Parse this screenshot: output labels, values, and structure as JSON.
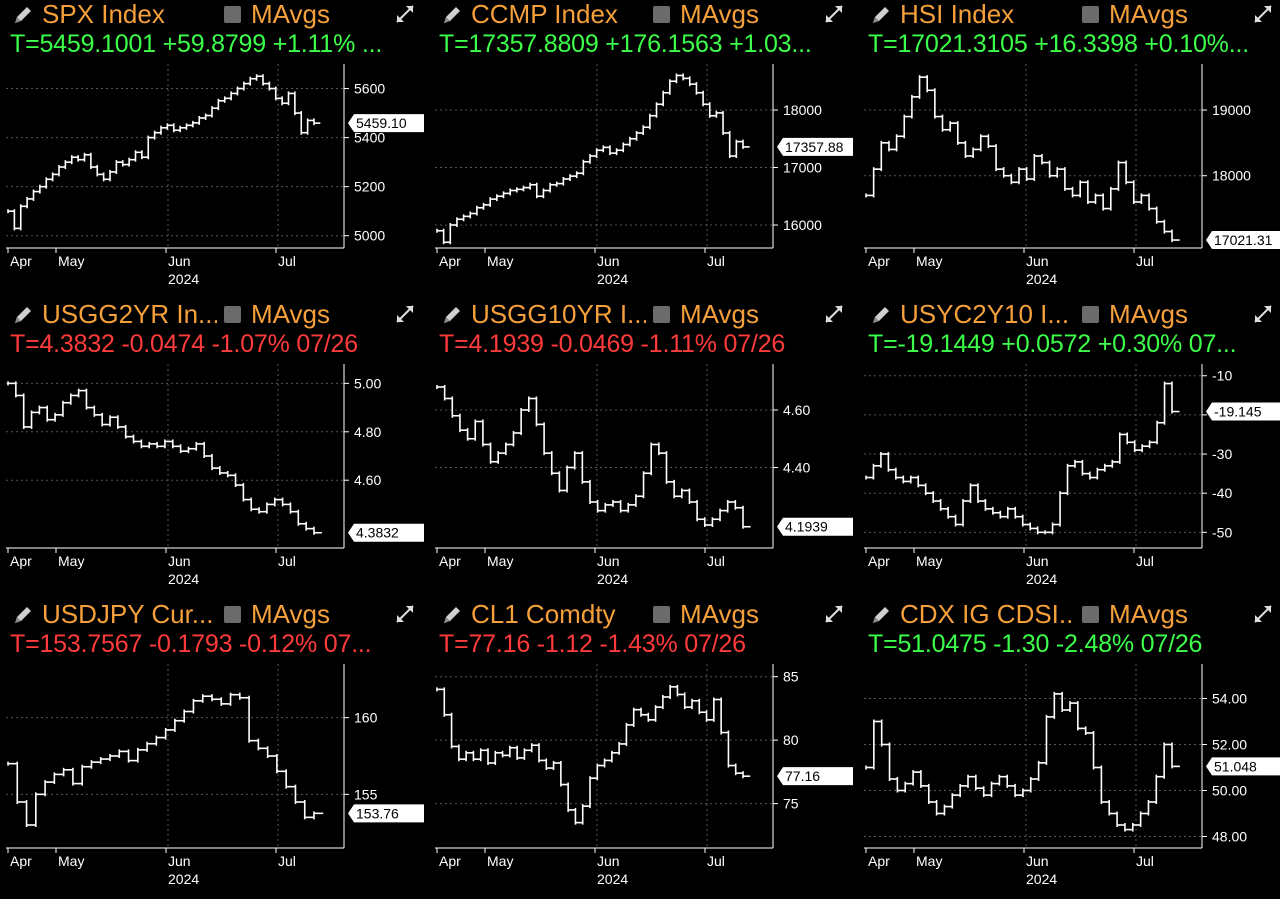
{
  "ui": {
    "mavgs_label": "MAvgs"
  },
  "panels": [
    {
      "title": "SPX Index",
      "quote": "T=5459.1001 +59.8799 +1.11% ...",
      "direction": "up",
      "yticks": [
        "5600",
        "5400",
        "5200",
        "5000"
      ],
      "price_label": "5459.10",
      "xlabels": [
        "Apr",
        "May",
        "Jun",
        "Jul"
      ],
      "year": "2024",
      "chart_data": {
        "type": "line",
        "ylim": [
          4950,
          5700
        ],
        "values": [
          5100,
          5030,
          5120,
          5150,
          5180,
          5200,
          5230,
          5250,
          5280,
          5300,
          5320,
          5310,
          5330,
          5280,
          5250,
          5230,
          5260,
          5300,
          5290,
          5310,
          5340,
          5320,
          5400,
          5420,
          5440,
          5450,
          5430,
          5440,
          5450,
          5460,
          5480,
          5490,
          5520,
          5550,
          5560,
          5580,
          5600,
          5620,
          5640,
          5650,
          5620,
          5600,
          5560,
          5540,
          5580,
          5500,
          5420,
          5470,
          5459
        ]
      }
    },
    {
      "title": "CCMP Index",
      "quote": "T=17357.8809 +176.1563 +1.03...",
      "direction": "up",
      "yticks": [
        "18000",
        "17000",
        "16000"
      ],
      "price_label": "17357.88",
      "xlabels": [
        "Apr",
        "May",
        "Jun",
        "Jul"
      ],
      "year": "2024",
      "chart_data": {
        "type": "line",
        "ylim": [
          15600,
          18800
        ],
        "values": [
          15900,
          15700,
          16000,
          16100,
          16150,
          16200,
          16300,
          16350,
          16450,
          16500,
          16550,
          16600,
          16620,
          16650,
          16700,
          16500,
          16600,
          16700,
          16720,
          16800,
          16850,
          16900,
          17100,
          17200,
          17300,
          17350,
          17250,
          17300,
          17400,
          17500,
          17600,
          17700,
          17900,
          18100,
          18300,
          18500,
          18600,
          18550,
          18450,
          18300,
          18100,
          17900,
          17950,
          17600,
          17200,
          17450,
          17358
        ]
      }
    },
    {
      "title": "HSI Index",
      "quote": "T=17021.3105 +16.3398 +0.10%...",
      "direction": "up",
      "yticks": [
        "19000",
        "18000"
      ],
      "price_label": "17021.31",
      "xlabels": [
        "Apr",
        "May",
        "Jun",
        "Jul"
      ],
      "year": "2024",
      "chart_data": {
        "type": "line",
        "ylim": [
          16900,
          19700
        ],
        "values": [
          17700,
          18100,
          18500,
          18400,
          18600,
          18900,
          19200,
          19500,
          19300,
          18900,
          18700,
          18800,
          18500,
          18300,
          18400,
          18600,
          18450,
          18100,
          18000,
          17900,
          18100,
          17950,
          18300,
          18200,
          18000,
          18100,
          17800,
          17700,
          17900,
          17600,
          17700,
          17500,
          17800,
          18200,
          17900,
          17600,
          17700,
          17500,
          17300,
          17150,
          17021
        ]
      }
    },
    {
      "title": "USGG2YR In...",
      "quote": "T=4.3832 -0.0474 -1.07% 07/26",
      "direction": "down",
      "yticks": [
        "5.00",
        "4.80",
        "4.60"
      ],
      "price_label": "4.3832",
      "xlabels": [
        "Apr",
        "May",
        "Jun",
        "Jul"
      ],
      "year": "2024",
      "chart_data": {
        "type": "line",
        "ylim": [
          4.32,
          5.08
        ],
        "values": [
          5.0,
          4.95,
          4.82,
          4.88,
          4.9,
          4.85,
          4.87,
          4.92,
          4.95,
          4.97,
          4.9,
          4.87,
          4.83,
          4.86,
          4.82,
          4.78,
          4.76,
          4.74,
          4.75,
          4.74,
          4.76,
          4.74,
          4.72,
          4.73,
          4.75,
          4.7,
          4.65,
          4.63,
          4.62,
          4.58,
          4.52,
          4.48,
          4.47,
          4.5,
          4.52,
          4.5,
          4.47,
          4.42,
          4.4,
          4.383
        ]
      }
    },
    {
      "title": "USGG10YR I...",
      "quote": "T=4.1939 -0.0469 -1.11% 07/26",
      "direction": "down",
      "yticks": [
        "4.60",
        "4.40"
      ],
      "price_label": "4.1939",
      "xlabels": [
        "Apr",
        "May",
        "Jun",
        "Jul"
      ],
      "year": "2024",
      "chart_data": {
        "type": "line",
        "ylim": [
          4.12,
          4.76
        ],
        "values": [
          4.68,
          4.64,
          4.58,
          4.53,
          4.5,
          4.56,
          4.48,
          4.42,
          4.45,
          4.48,
          4.52,
          4.6,
          4.64,
          4.55,
          4.45,
          4.38,
          4.32,
          4.4,
          4.45,
          4.35,
          4.28,
          4.25,
          4.27,
          4.28,
          4.25,
          4.27,
          4.3,
          4.38,
          4.48,
          4.45,
          4.35,
          4.3,
          4.32,
          4.28,
          4.22,
          4.2,
          4.22,
          4.25,
          4.28,
          4.26,
          4.194
        ]
      }
    },
    {
      "title": "USYC2Y10 I...",
      "quote": "T=-19.1449 +0.0572 +0.30% 07...",
      "direction": "up",
      "yticks": [
        "-10",
        "-20",
        "-30",
        "-40",
        "-50"
      ],
      "price_label": "-19.145",
      "xlabels": [
        "Apr",
        "May",
        "Jun",
        "Jul"
      ],
      "year": "2024",
      "chart_data": {
        "type": "line",
        "ylim": [
          -54,
          -7
        ],
        "values": [
          -36,
          -33,
          -30,
          -34,
          -36,
          -37,
          -36,
          -38,
          -40,
          -42,
          -44,
          -46,
          -48,
          -42,
          -38,
          -42,
          -44,
          -45,
          -46,
          -44,
          -46,
          -48,
          -49,
          -50,
          -50,
          -48,
          -40,
          -33,
          -32,
          -35,
          -36,
          -34,
          -33,
          -32,
          -25,
          -27,
          -29,
          -28,
          -27,
          -22,
          -12,
          -19.145
        ]
      }
    },
    {
      "title": "USDJPY Cur...",
      "quote": "T=153.7567 -0.1793 -0.12% 07...",
      "direction": "down",
      "yticks": [
        "160",
        "155"
      ],
      "price_label": "153.76",
      "xlabels": [
        "Apr",
        "May",
        "Jun",
        "Jul"
      ],
      "year": "2024",
      "chart_data": {
        "type": "line",
        "ylim": [
          151.5,
          163.5
        ],
        "values": [
          157,
          154.5,
          153,
          155,
          155.8,
          156.3,
          156.6,
          155.7,
          156.8,
          157.1,
          157.3,
          157.5,
          157.8,
          157.2,
          157.9,
          158.3,
          158.7,
          159.2,
          159.8,
          160.4,
          161.1,
          161.4,
          161.2,
          160.9,
          161.5,
          161.3,
          158.5,
          158,
          157.5,
          156.5,
          155.5,
          154.5,
          153.5,
          153.76
        ]
      }
    },
    {
      "title": "CL1 Comdty",
      "quote": "T=77.16 -1.12 -1.43% 07/26",
      "direction": "down",
      "yticks": [
        "85",
        "80",
        "75"
      ],
      "price_label": "77.16",
      "xlabels": [
        "Apr",
        "May",
        "Jun",
        "Jul"
      ],
      "year": "2024",
      "chart_data": {
        "type": "line",
        "ylim": [
          71.5,
          86
        ],
        "values": [
          84,
          82,
          79.5,
          78.5,
          79,
          78.5,
          79.2,
          78.2,
          79,
          78.8,
          79.4,
          78.6,
          79.2,
          79.6,
          78.4,
          77.8,
          78.2,
          76.5,
          74.5,
          73.5,
          74.8,
          77,
          78,
          78.4,
          79,
          79.7,
          81.2,
          82.4,
          82,
          81.6,
          82.6,
          83.4,
          84.2,
          83.6,
          82.6,
          83.1,
          82.2,
          81.6,
          83.2,
          80.6,
          78,
          77.4,
          77.16
        ]
      }
    },
    {
      "title": "CDX IG CDSI...",
      "quote": "T=51.0475 -1.30 -2.48% 07/26",
      "direction": "up",
      "yticks": [
        "54.00",
        "52.00",
        "50.00",
        "48.00"
      ],
      "price_label": "51.048",
      "xlabels": [
        "Apr",
        "May",
        "Jun",
        "Jul"
      ],
      "year": "2024",
      "chart_data": {
        "type": "line",
        "ylim": [
          47.5,
          55.5
        ],
        "values": [
          51,
          53,
          52,
          50.5,
          50,
          50.3,
          50.8,
          50.2,
          49.5,
          49,
          49.3,
          49.8,
          50.2,
          50.6,
          50.1,
          49.8,
          50.3,
          50.6,
          50.2,
          49.8,
          50,
          50.5,
          51.2,
          53.2,
          54.2,
          53.5,
          53.8,
          52.7,
          52.5,
          51,
          49.5,
          49,
          48.5,
          48.3,
          48.5,
          49,
          49.5,
          50.6,
          52,
          51.048
        ]
      }
    }
  ]
}
